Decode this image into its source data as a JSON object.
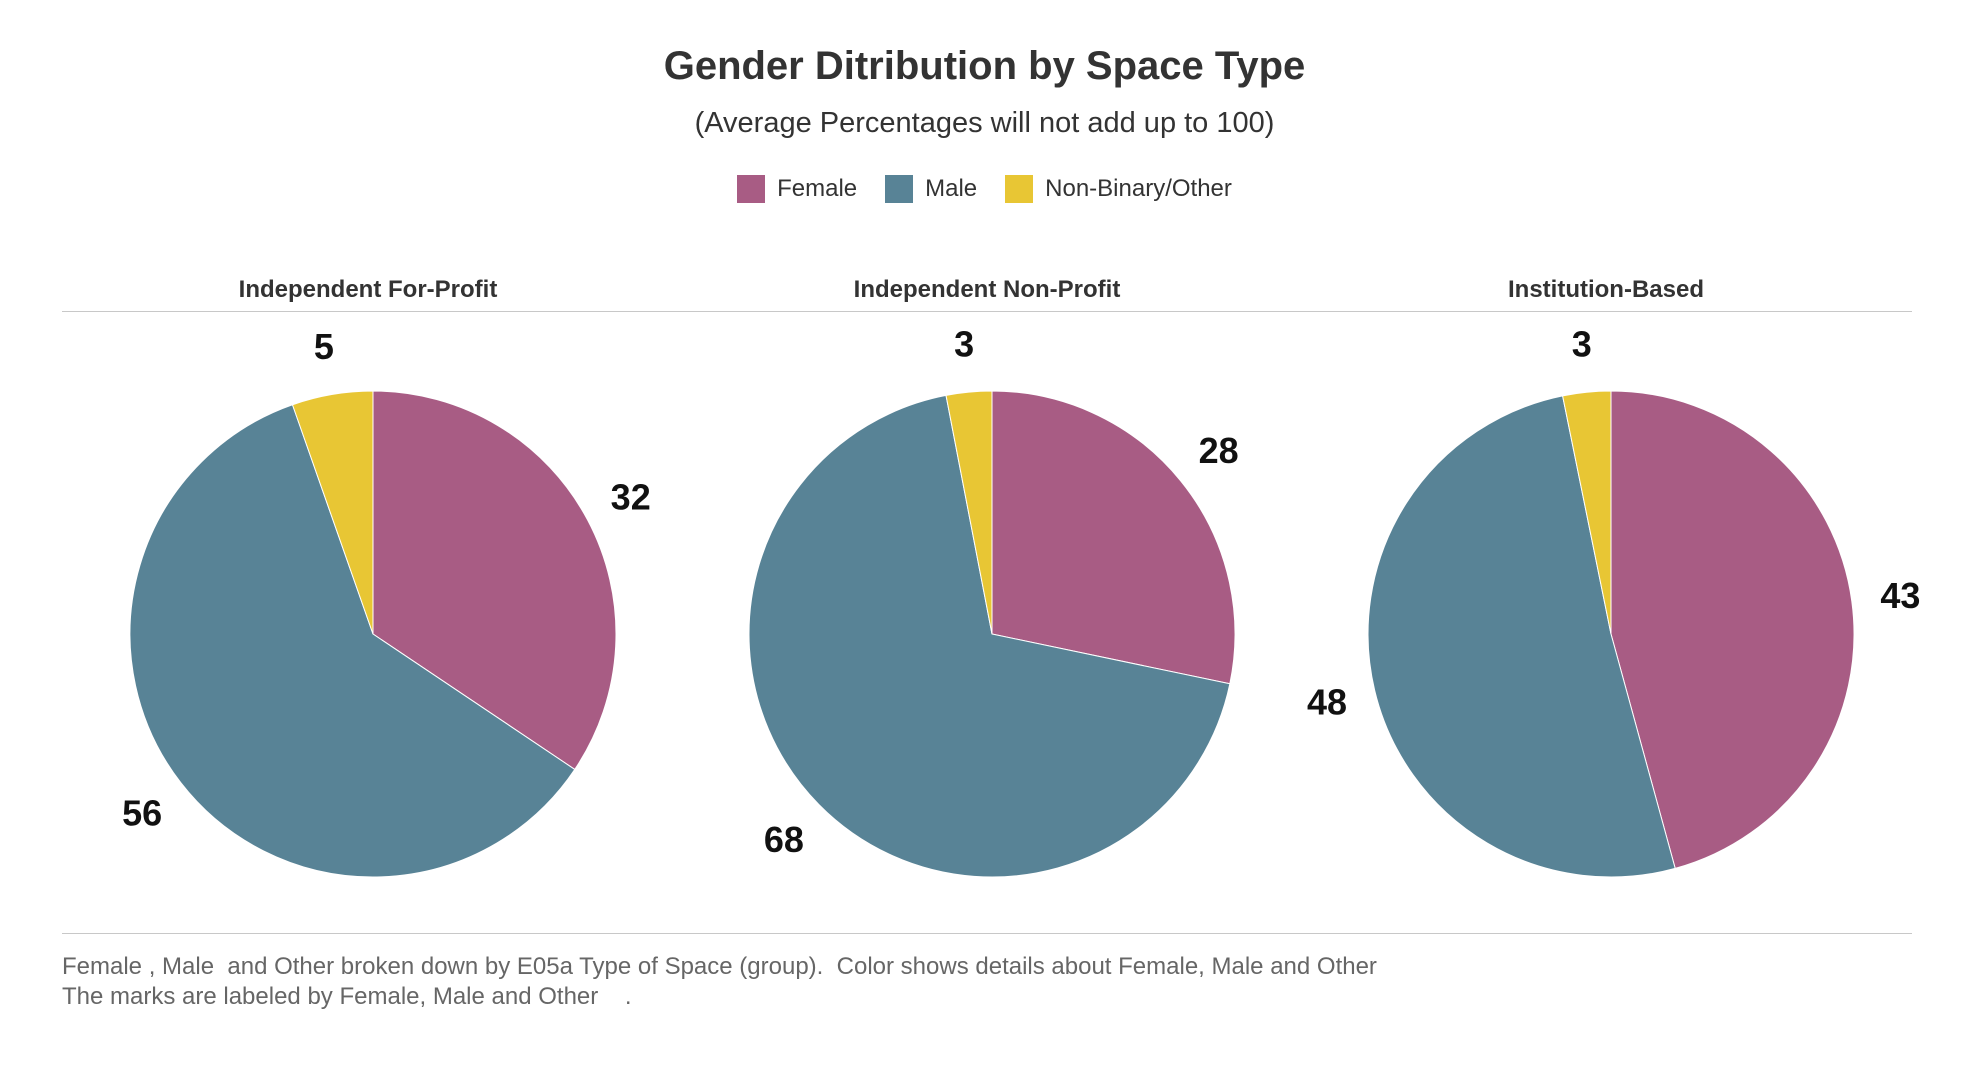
{
  "colors": {
    "Female": "#A85C84",
    "Male": "#588396",
    "Non-Binary/Other": "#E8C634",
    "border": "#ffffff"
  },
  "chart_data": {
    "type": "pie",
    "title": "Gender Ditribution by Space Type",
    "subtitle": "(Average Percentages will not add up to 100)",
    "legend": [
      "Female",
      "Male",
      "Non-Binary/Other"
    ],
    "legend_position": "top-center",
    "panels": [
      {
        "name": "Independent For-Profit",
        "slices": [
          {
            "label": "Female",
            "value": 32
          },
          {
            "label": "Male",
            "value": 56
          },
          {
            "label": "Non-Binary/Other",
            "value": 5
          }
        ]
      },
      {
        "name": "Independent Non-Profit",
        "slices": [
          {
            "label": "Female",
            "value": 28
          },
          {
            "label": "Male",
            "value": 68
          },
          {
            "label": "Non-Binary/Other",
            "value": 3
          }
        ]
      },
      {
        "name": "Institution-Based",
        "slices": [
          {
            "label": "Female",
            "value": 43
          },
          {
            "label": "Male",
            "value": 48
          },
          {
            "label": "Non-Binary/Other",
            "value": 3
          }
        ]
      }
    ]
  },
  "footnote": {
    "line1": "Female , Male  and Other broken down by E05a Type of Space (group).  Color shows details about Female, Male and Other",
    "line2": "The marks are labeled by Female, Male and Other    ."
  }
}
